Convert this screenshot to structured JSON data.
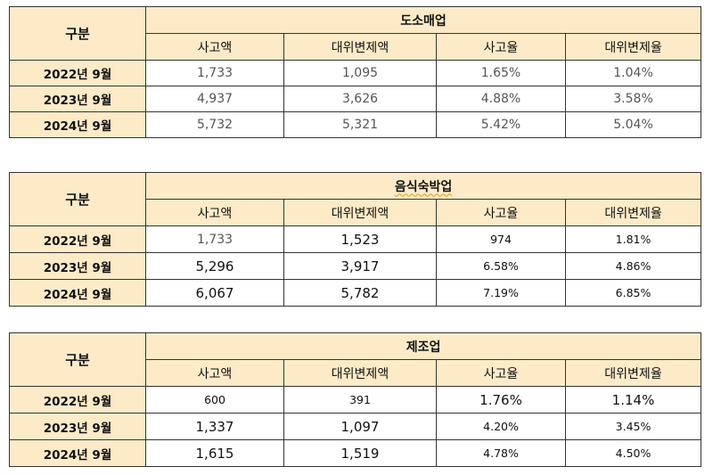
{
  "row_header": "구분",
  "columns": [
    "사고액",
    "대위변제액",
    "사고율",
    "대위변제율"
  ],
  "tables": [
    {
      "category": "도소매업",
      "rows": [
        {
          "year": "2022년 9월",
          "values": [
            "1,733",
            "1,095",
            "1.65%",
            "1.04%"
          ]
        },
        {
          "year": "2023년 9월",
          "values": [
            "4,937",
            "3,626",
            "4.88%",
            "3.58%"
          ]
        },
        {
          "year": "2024년 9월",
          "values": [
            "5,732",
            "5,321",
            "5.42%",
            "5.04%"
          ]
        }
      ]
    },
    {
      "category": "음식숙박업",
      "rows": [
        {
          "year": "2022년 9월",
          "values": [
            "1,733",
            "1,523",
            "974",
            "1.81%"
          ]
        },
        {
          "year": "2023년 9월",
          "values": [
            "5,296",
            "3,917",
            "6.58%",
            "4.86%"
          ]
        },
        {
          "year": "2024년 9월",
          "values": [
            "6,067",
            "5,782",
            "7.19%",
            "6.85%"
          ]
        }
      ]
    },
    {
      "category": "제조업",
      "rows": [
        {
          "year": "2022년 9월",
          "values": [
            "600",
            "391",
            "1.76%",
            "1.14%"
          ]
        },
        {
          "year": "2023년 9월",
          "values": [
            "1,337",
            "1,097",
            "4.20%",
            "3.45%"
          ]
        },
        {
          "year": "2024년 9월",
          "values": [
            "1,615",
            "1,519",
            "4.78%",
            "4.50%"
          ]
        }
      ]
    }
  ]
}
